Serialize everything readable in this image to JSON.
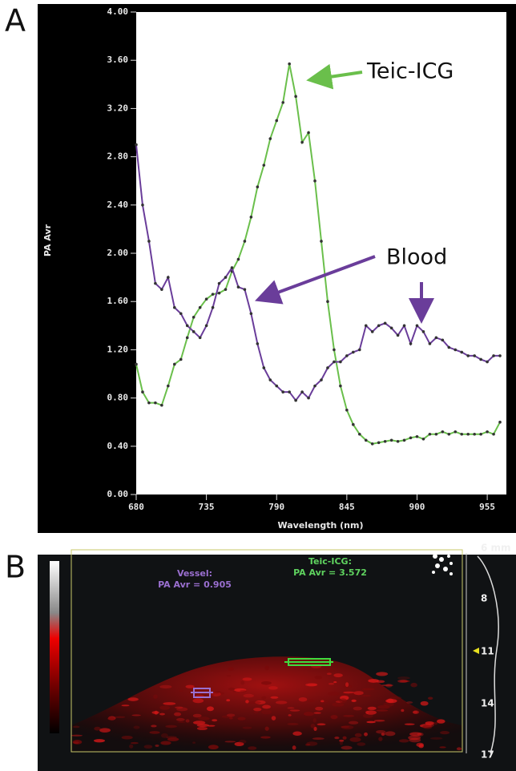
{
  "panel_labels": [
    "A",
    "B"
  ],
  "chart_data": {
    "type": "line",
    "xlabel": "Wavelength (nm)",
    "ylabel": "PA Avr",
    "annotations": [
      "Teic-ICG",
      "Blood"
    ],
    "x": [
      680,
      685,
      690,
      695,
      700,
      705,
      710,
      715,
      720,
      725,
      730,
      735,
      740,
      745,
      750,
      755,
      760,
      765,
      770,
      775,
      780,
      785,
      790,
      795,
      800,
      805,
      810,
      815,
      820,
      825,
      830,
      835,
      840,
      845,
      850,
      855,
      860,
      865,
      870,
      875,
      880,
      885,
      890,
      895,
      900,
      905,
      910,
      915,
      920,
      925,
      930,
      935,
      940,
      945,
      950,
      955,
      960,
      965
    ],
    "series": [
      {
        "name": "Teic-ICG",
        "color": "#6abf4b",
        "values": [
          1.08,
          0.85,
          0.76,
          0.76,
          0.74,
          0.9,
          1.08,
          1.12,
          1.3,
          1.47,
          1.55,
          1.62,
          1.66,
          1.67,
          1.7,
          1.85,
          1.95,
          2.1,
          2.3,
          2.55,
          2.73,
          2.95,
          3.1,
          3.25,
          3.57,
          3.3,
          2.92,
          3.0,
          2.6,
          2.1,
          1.6,
          1.2,
          0.9,
          0.7,
          0.58,
          0.5,
          0.45,
          0.42,
          0.43,
          0.44,
          0.45,
          0.44,
          0.45,
          0.47,
          0.48,
          0.46,
          0.5,
          0.5,
          0.52,
          0.5,
          0.52,
          0.5,
          0.5,
          0.5,
          0.5,
          0.52,
          0.5,
          0.6
        ]
      },
      {
        "name": "Blood",
        "color": "#6a3d9a",
        "values": [
          2.9,
          2.4,
          2.1,
          1.75,
          1.7,
          1.8,
          1.55,
          1.5,
          1.4,
          1.35,
          1.3,
          1.4,
          1.55,
          1.75,
          1.8,
          1.88,
          1.72,
          1.7,
          1.5,
          1.25,
          1.05,
          0.95,
          0.9,
          0.85,
          0.85,
          0.78,
          0.85,
          0.8,
          0.9,
          0.95,
          1.05,
          1.1,
          1.1,
          1.15,
          1.18,
          1.2,
          1.4,
          1.35,
          1.4,
          1.42,
          1.38,
          1.32,
          1.4,
          1.25,
          1.4,
          1.35,
          1.25,
          1.3,
          1.28,
          1.22,
          1.2,
          1.18,
          1.15,
          1.15,
          1.12,
          1.1,
          1.15,
          1.15
        ]
      }
    ],
    "xlim": [
      680,
      970
    ],
    "ylim": [
      0,
      4
    ],
    "xticks": [
      680,
      735,
      790,
      845,
      900,
      955
    ],
    "yticks": [
      {
        "value": 0,
        "label": "0.00"
      },
      {
        "value": 0.4,
        "label": "0.40"
      },
      {
        "value": 0.8,
        "label": "0.80"
      },
      {
        "value": 1.2,
        "label": "1.20"
      },
      {
        "value": 1.6,
        "label": "1.60"
      },
      {
        "value": 2,
        "label": "2.00"
      },
      {
        "value": 2.4,
        "label": "2.40"
      },
      {
        "value": 2.8,
        "label": "2.80"
      },
      {
        "value": 3.2,
        "label": "3.20"
      },
      {
        "value": 3.6,
        "label": "3.60"
      },
      {
        "value": 4,
        "label": "4.00"
      }
    ],
    "grid": false
  },
  "panel_b": {
    "roi_labels": [
      {
        "name": "Vessel:",
        "value": "PA Avr = 0.905"
      },
      {
        "name": "Teic-ICG:",
        "value": "PA Avr = 3.572"
      }
    ],
    "depth_labels": [
      "6 mm",
      "8",
      "11",
      "14",
      "17"
    ]
  }
}
